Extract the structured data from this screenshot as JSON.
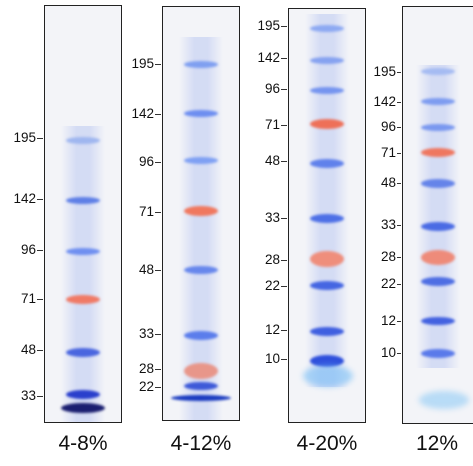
{
  "gels": [
    {
      "label": "4-8%",
      "markers": [
        "195",
        "142",
        "96",
        "71",
        "48",
        "33"
      ],
      "bands": [
        {
          "color": "#9fb6ef"
        },
        {
          "color": "#5e7fe6"
        },
        {
          "color": "#6f8ff0"
        },
        {
          "color": "#f07a66"
        },
        {
          "color": "#4a66df"
        },
        {
          "color": "#2a3fcc"
        },
        {
          "color": "#1a1e70"
        }
      ]
    },
    {
      "label": "4-12%",
      "markers": [
        "195",
        "142",
        "96",
        "71",
        "48",
        "33",
        "28",
        "22"
      ],
      "bands": [
        {
          "color": "#7f9ff0"
        },
        {
          "color": "#6d8ef0"
        },
        {
          "color": "#7fa0f3"
        },
        {
          "color": "#f0785f"
        },
        {
          "color": "#6787ec"
        },
        {
          "color": "#5b7deb"
        },
        {
          "color": "#e8968a"
        },
        {
          "color": "#3e5ad8"
        },
        {
          "color": "#1a3bc0"
        }
      ]
    },
    {
      "label": "4-20%",
      "markers": [
        "195",
        "142",
        "96",
        "71",
        "48",
        "33",
        "28",
        "22",
        "12",
        "10"
      ],
      "bands": [
        {
          "color": "#8da9f2"
        },
        {
          "color": "#86a2f0"
        },
        {
          "color": "#7594ef"
        },
        {
          "color": "#ee7058"
        },
        {
          "color": "#6081eb"
        },
        {
          "color": "#4e70e6"
        },
        {
          "color": "#ef8e7c"
        },
        {
          "color": "#4566e2"
        },
        {
          "color": "#3f5fe0"
        },
        {
          "color": "#2f50dc"
        }
      ]
    },
    {
      "label": "12%",
      "markers": [
        "195",
        "142",
        "96",
        "71",
        "48",
        "33",
        "28",
        "22",
        "12",
        "10"
      ],
      "bands": [
        {
          "color": "#a5bbf2"
        },
        {
          "color": "#7e9cf0"
        },
        {
          "color": "#7a98ef"
        },
        {
          "color": "#ef7760"
        },
        {
          "color": "#6584e9"
        },
        {
          "color": "#4a6be4"
        },
        {
          "color": "#ee8b7a"
        },
        {
          "color": "#4e6ee3"
        },
        {
          "color": "#4362e0"
        },
        {
          "color": "#5a7aea"
        }
      ]
    }
  ]
}
